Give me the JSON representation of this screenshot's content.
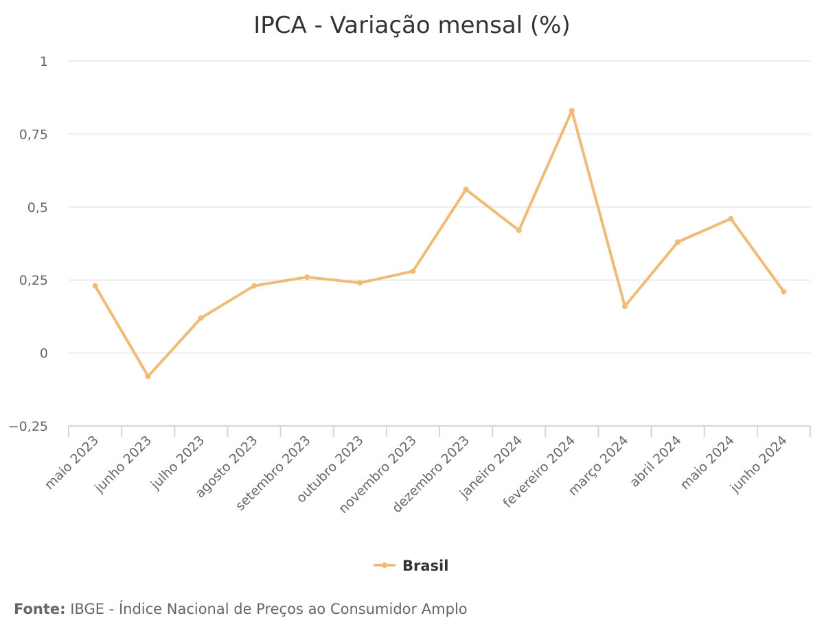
{
  "chart_data": {
    "type": "line",
    "title": "IPCA - Variação mensal (%)",
    "categories": [
      "maio 2023",
      "junho 2023",
      "julho 2023",
      "agosto 2023",
      "setembro 2023",
      "outubro 2023",
      "novembro 2023",
      "dezembro 2023",
      "janeiro 2024",
      "fevereiro 2024",
      "março 2024",
      "abril 2024",
      "maio 2024",
      "junho 2024"
    ],
    "series": [
      {
        "name": "Brasil",
        "values": [
          0.23,
          -0.08,
          0.12,
          0.23,
          0.26,
          0.24,
          0.28,
          0.56,
          0.42,
          0.83,
          0.16,
          0.38,
          0.46,
          0.21
        ]
      }
    ],
    "yticks": [
      1,
      0.75,
      0.5,
      0.25,
      0,
      -0.25
    ],
    "ytick_labels": [
      "1",
      "0,75",
      "0,5",
      "0,25",
      "0",
      "−0,25"
    ],
    "ylim": [
      -0.25,
      1
    ],
    "xlabel": "",
    "ylabel": "",
    "grid": true,
    "legend_position": "bottom-center",
    "colors": {
      "series": "#f0bb76",
      "grid": "#e6e6e6",
      "axis": "#ccd6eb"
    }
  },
  "source": {
    "prefix": "Fonte:",
    "text": " IBGE - Índice Nacional de Preços ao Consumidor Amplo"
  }
}
